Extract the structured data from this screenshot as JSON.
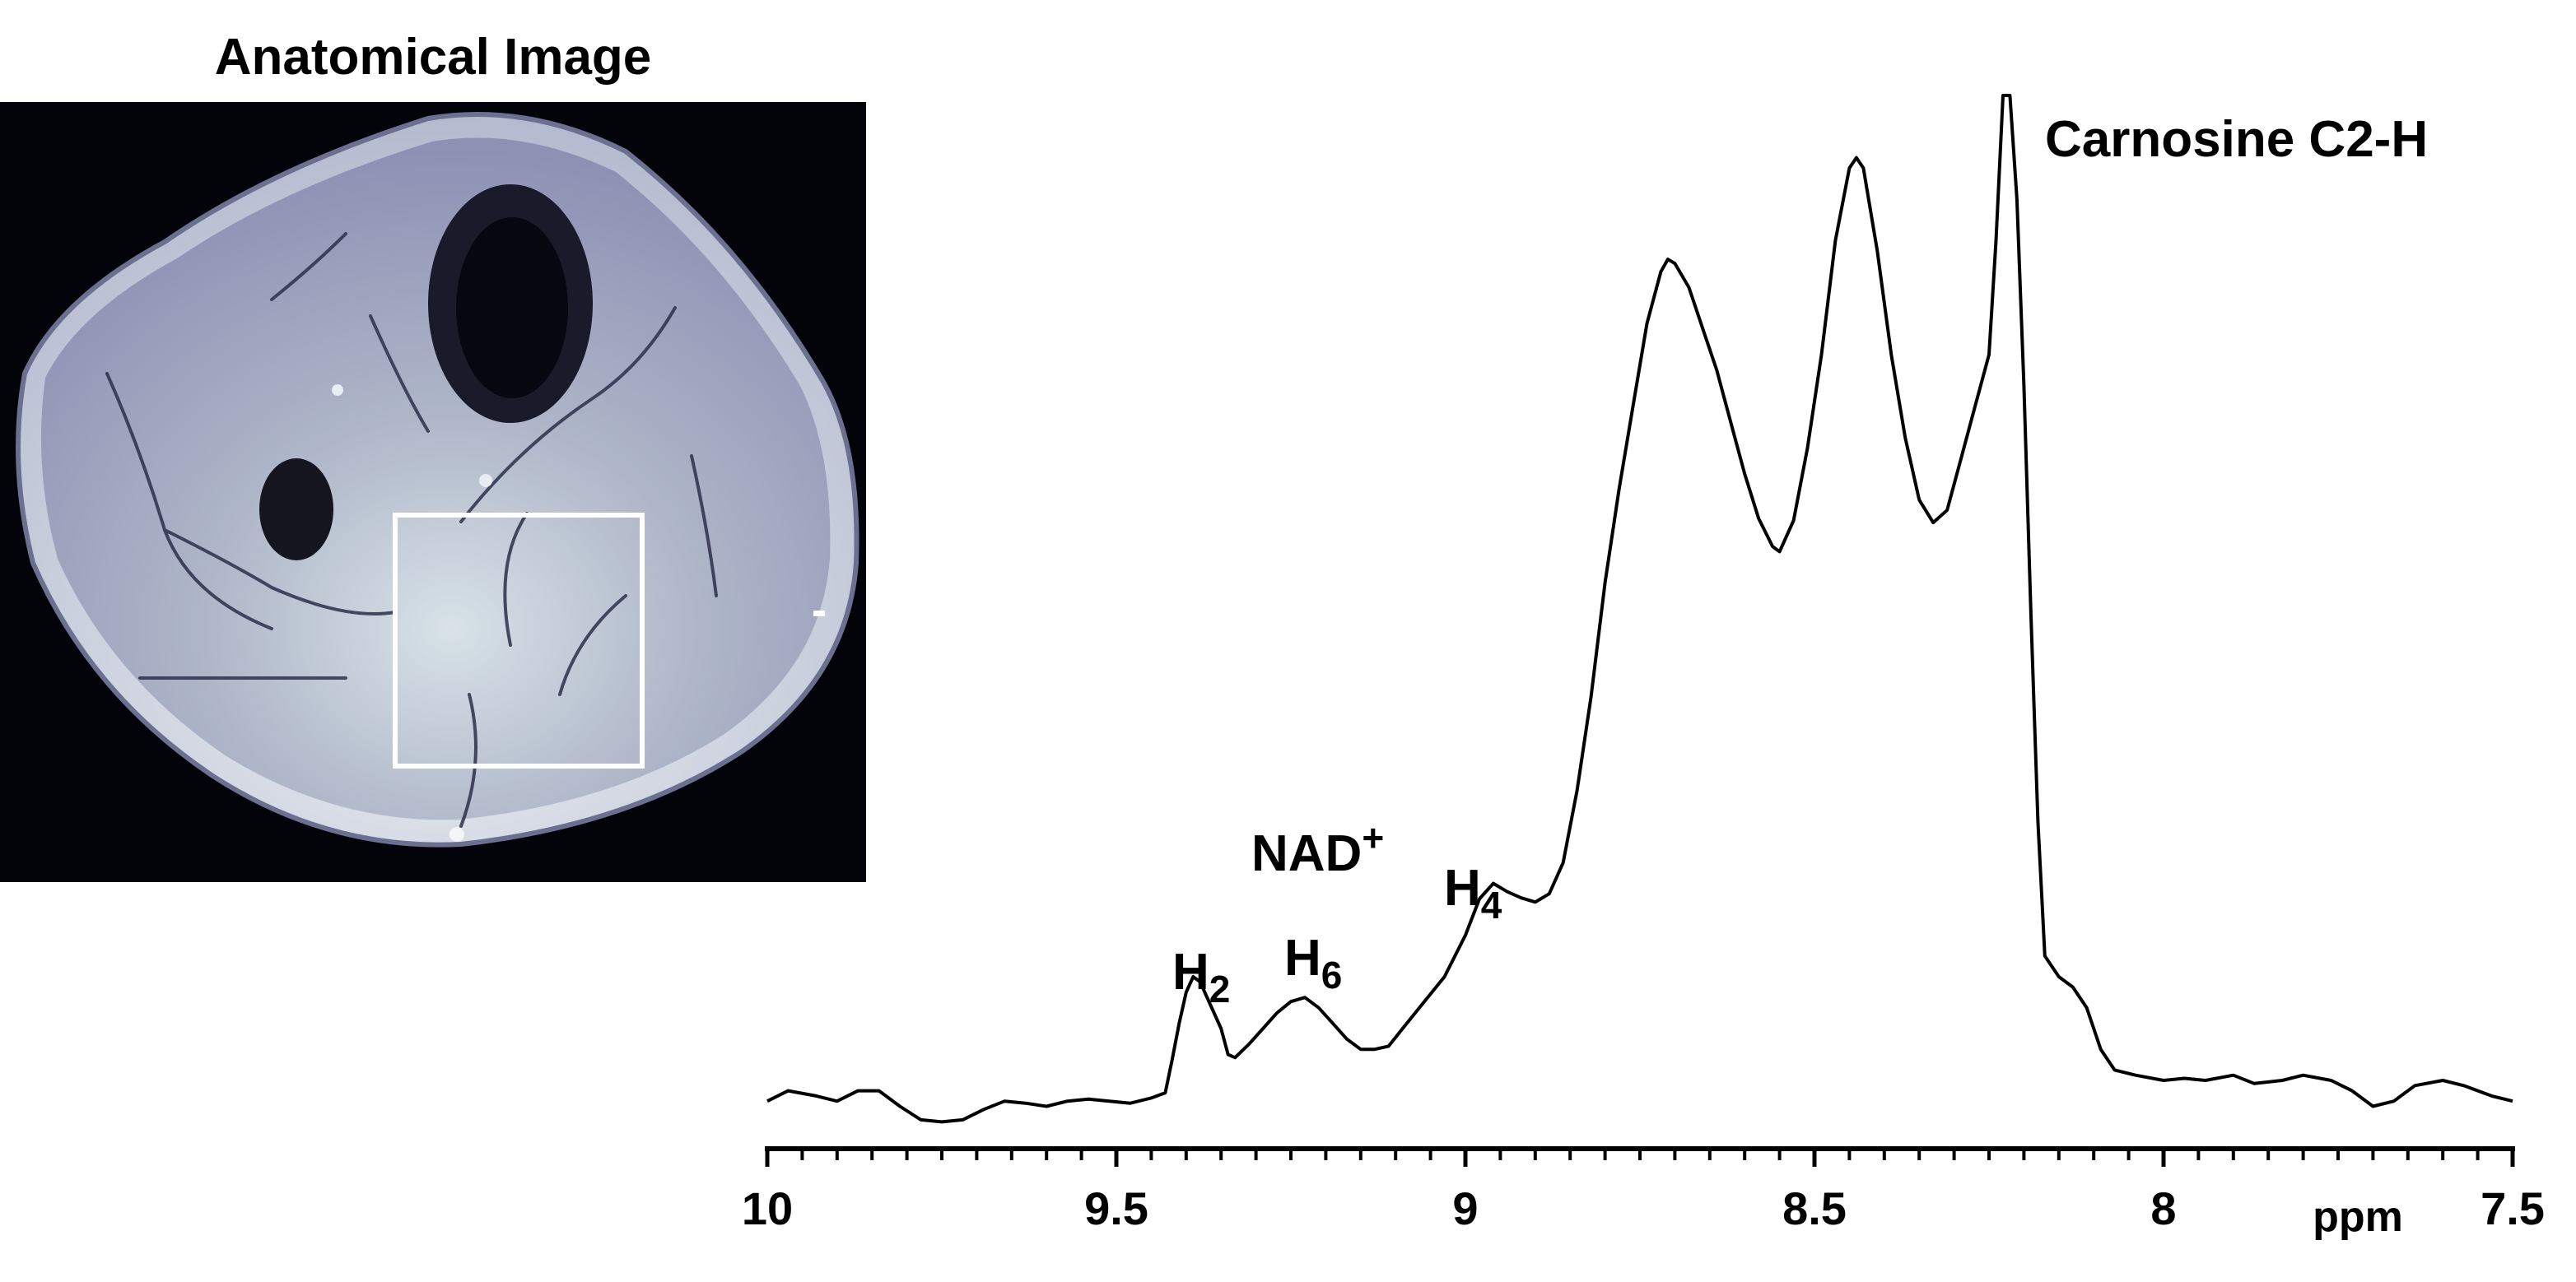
{
  "image_panel": {
    "title": "Anatomical Image"
  },
  "chart_data": {
    "type": "line",
    "title": "",
    "xlabel": "ppm",
    "ylabel": "",
    "xlim": [
      10,
      7.5
    ],
    "x_reversed": true,
    "x_ticks": [
      {
        "value": 10,
        "label": "10"
      },
      {
        "value": 9.5,
        "label": "9.5"
      },
      {
        "value": 9,
        "label": "9"
      },
      {
        "value": 8.5,
        "label": "8.5"
      },
      {
        "value": 8,
        "label": "8"
      },
      {
        "value": 7.5,
        "label": "7.5"
      }
    ],
    "minor_tick_step": 0.05,
    "y_axis_shown": false,
    "grid": false,
    "ylim": [
      0,
      1
    ],
    "series": [
      {
        "color": "#000000",
        "points": [
          [
            10.0,
            0.03
          ],
          [
            9.97,
            0.04
          ],
          [
            9.93,
            0.035
          ],
          [
            9.9,
            0.03
          ],
          [
            9.87,
            0.04
          ],
          [
            9.84,
            0.04
          ],
          [
            9.81,
            0.025
          ],
          [
            9.78,
            0.012
          ],
          [
            9.75,
            0.01
          ],
          [
            9.72,
            0.012
          ],
          [
            9.69,
            0.022
          ],
          [
            9.66,
            0.03
          ],
          [
            9.63,
            0.028
          ],
          [
            9.6,
            0.025
          ],
          [
            9.57,
            0.03
          ],
          [
            9.54,
            0.032
          ],
          [
            9.51,
            0.03
          ],
          [
            9.48,
            0.028
          ],
          [
            9.45,
            0.033
          ],
          [
            9.43,
            0.038
          ],
          [
            9.42,
            0.07
          ],
          [
            9.41,
            0.105
          ],
          [
            9.4,
            0.135
          ],
          [
            9.39,
            0.15
          ],
          [
            9.38,
            0.145
          ],
          [
            9.37,
            0.13
          ],
          [
            9.35,
            0.1
          ],
          [
            9.34,
            0.075
          ],
          [
            9.33,
            0.072
          ],
          [
            9.31,
            0.085
          ],
          [
            9.29,
            0.1
          ],
          [
            9.27,
            0.115
          ],
          [
            9.25,
            0.126
          ],
          [
            9.23,
            0.13
          ],
          [
            9.21,
            0.12
          ],
          [
            9.19,
            0.105
          ],
          [
            9.17,
            0.09
          ],
          [
            9.15,
            0.08
          ],
          [
            9.13,
            0.08
          ],
          [
            9.11,
            0.083
          ],
          [
            9.09,
            0.1
          ],
          [
            9.06,
            0.125
          ],
          [
            9.03,
            0.15
          ],
          [
            9.0,
            0.19
          ],
          [
            8.98,
            0.225
          ],
          [
            8.96,
            0.24
          ],
          [
            8.94,
            0.232
          ],
          [
            8.92,
            0.226
          ],
          [
            8.9,
            0.222
          ],
          [
            8.88,
            0.23
          ],
          [
            8.86,
            0.26
          ],
          [
            8.84,
            0.33
          ],
          [
            8.82,
            0.42
          ],
          [
            8.8,
            0.53
          ],
          [
            8.78,
            0.62
          ],
          [
            8.76,
            0.7
          ],
          [
            8.74,
            0.78
          ],
          [
            8.72,
            0.83
          ],
          [
            8.71,
            0.842
          ],
          [
            8.7,
            0.838
          ],
          [
            8.68,
            0.815
          ],
          [
            8.66,
            0.775
          ],
          [
            8.64,
            0.735
          ],
          [
            8.62,
            0.685
          ],
          [
            8.6,
            0.635
          ],
          [
            8.58,
            0.592
          ],
          [
            8.56,
            0.565
          ],
          [
            8.55,
            0.56
          ],
          [
            8.53,
            0.59
          ],
          [
            8.51,
            0.66
          ],
          [
            8.49,
            0.75
          ],
          [
            8.47,
            0.86
          ],
          [
            8.45,
            0.93
          ],
          [
            8.44,
            0.94
          ],
          [
            8.43,
            0.93
          ],
          [
            8.41,
            0.85
          ],
          [
            8.39,
            0.75
          ],
          [
            8.37,
            0.67
          ],
          [
            8.35,
            0.61
          ],
          [
            8.33,
            0.588
          ],
          [
            8.31,
            0.6
          ],
          [
            8.29,
            0.65
          ],
          [
            8.27,
            0.7
          ],
          [
            8.25,
            0.75
          ],
          [
            8.24,
            0.86
          ],
          [
            8.23,
            1.0
          ],
          [
            8.22,
            1.0
          ],
          [
            8.21,
            0.9
          ],
          [
            8.2,
            0.72
          ],
          [
            8.19,
            0.5
          ],
          [
            8.18,
            0.3
          ],
          [
            8.17,
            0.17
          ],
          [
            8.15,
            0.15
          ],
          [
            8.13,
            0.14
          ],
          [
            8.11,
            0.12
          ],
          [
            8.09,
            0.08
          ],
          [
            8.07,
            0.06
          ],
          [
            8.04,
            0.055
          ],
          [
            8.0,
            0.05
          ],
          [
            7.97,
            0.052
          ],
          [
            7.94,
            0.05
          ],
          [
            7.9,
            0.055
          ],
          [
            7.87,
            0.047
          ],
          [
            7.83,
            0.05
          ],
          [
            7.8,
            0.055
          ],
          [
            7.76,
            0.05
          ],
          [
            7.73,
            0.04
          ],
          [
            7.7,
            0.025
          ],
          [
            7.67,
            0.03
          ],
          [
            7.64,
            0.045
          ],
          [
            7.6,
            0.05
          ],
          [
            7.57,
            0.045
          ],
          [
            7.53,
            0.035
          ],
          [
            7.5,
            0.03
          ]
        ]
      }
    ],
    "annotations": [
      {
        "text": "Carnosine C2-H",
        "x": 8.2,
        "y": 0.99
      },
      {
        "text": "NAD",
        "sup": "+",
        "x": 9.22,
        "y": 0.23
      },
      {
        "text": "H",
        "sub": "2",
        "x": 9.39,
        "y": 0.14
      },
      {
        "text": "H",
        "sub": "6",
        "x": 9.22,
        "y": 0.125
      },
      {
        "text": "H",
        "sub": "4",
        "x": 8.96,
        "y": 0.235
      }
    ]
  }
}
